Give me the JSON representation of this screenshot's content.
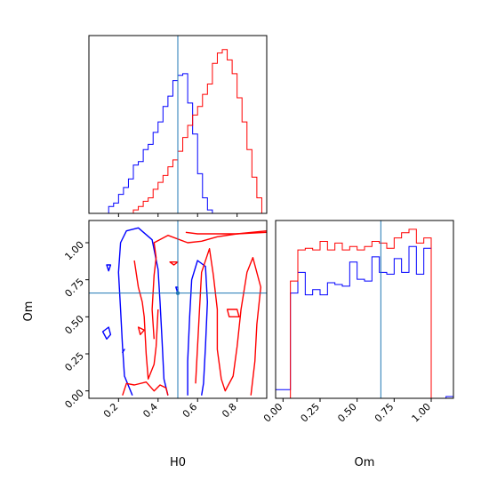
{
  "chart_data": {
    "type": "corner",
    "variables": [
      "H0",
      "Om"
    ],
    "colors": {
      "run_a": "#0000ff",
      "run_b": "#ff0000",
      "truth": "#1f77b4"
    },
    "truth": {
      "H0": 0.5,
      "Om": 0.66
    },
    "x_range_H0": [
      0.05,
      0.95
    ],
    "x_range_Om": [
      -0.05,
      1.15
    ],
    "y_range_Om": [
      -0.05,
      1.15
    ],
    "ticks_H0": [
      "0.2",
      "0.4",
      "0.6",
      "0.8"
    ],
    "ticks_Om_y": [
      "0.00",
      "0.25",
      "0.50",
      "0.75",
      "1.00"
    ],
    "ticks_Om_x": [
      "0.00",
      "0.25",
      "0.50",
      "0.75",
      "1.00"
    ],
    "xlabel_H0": "H0",
    "xlabel_Om": "Om",
    "ylabel_Om": "Om",
    "hist_H0": {
      "bin_edges": [
        0.05,
        0.075,
        0.1,
        0.125,
        0.15,
        0.175,
        0.2,
        0.225,
        0.25,
        0.275,
        0.3,
        0.325,
        0.35,
        0.375,
        0.4,
        0.425,
        0.45,
        0.475,
        0.5,
        0.525,
        0.55,
        0.575,
        0.6,
        0.625,
        0.65,
        0.675,
        0.7,
        0.725,
        0.75,
        0.775,
        0.8,
        0.825,
        0.85,
        0.875,
        0.9,
        0.925,
        0.95
      ],
      "run_a": [
        0,
        0,
        0,
        0,
        0.04,
        0.06,
        0.11,
        0.15,
        0.2,
        0.28,
        0.3,
        0.37,
        0.4,
        0.47,
        0.53,
        0.62,
        0.68,
        0.77,
        0.8,
        0.81,
        0.64,
        0.46,
        0.23,
        0.09,
        0.02,
        0,
        0,
        0,
        0,
        0,
        0,
        0,
        0,
        0,
        0,
        0
      ],
      "run_b": [
        0,
        0,
        0,
        0,
        0,
        0,
        0,
        0,
        0,
        0.02,
        0.04,
        0.07,
        0.09,
        0.14,
        0.18,
        0.22,
        0.27,
        0.31,
        0.36,
        0.44,
        0.51,
        0.57,
        0.62,
        0.69,
        0.75,
        0.87,
        0.93,
        0.95,
        0.89,
        0.81,
        0.67,
        0.53,
        0.37,
        0.21,
        0.09,
        0
      ]
    },
    "hist_Om": {
      "bin_edges": [
        -0.05,
        0.0,
        0.05,
        0.1,
        0.15,
        0.2,
        0.25,
        0.3,
        0.35,
        0.4,
        0.45,
        0.5,
        0.55,
        0.6,
        0.65,
        0.7,
        0.75,
        0.8,
        0.85,
        0.9,
        0.95,
        1.0,
        1.05,
        1.1,
        1.15
      ],
      "run_a": [
        0.05,
        0.05,
        0.61,
        0.73,
        0.6,
        0.63,
        0.6,
        0.67,
        0.66,
        0.65,
        0.79,
        0.69,
        0.68,
        0.82,
        0.73,
        0.72,
        0.81,
        0.73,
        0.88,
        0.72,
        0.87,
        0,
        0,
        0.01
      ],
      "run_b": [
        0,
        0,
        0.68,
        0.86,
        0.87,
        0.86,
        0.91,
        0.86,
        0.9,
        0.86,
        0.88,
        0.86,
        0.88,
        0.91,
        0.9,
        0.87,
        0.93,
        0.96,
        0.98,
        0.9,
        0.93,
        0,
        0,
        0
      ]
    },
    "contours": {
      "run_a": [
        [
          [
            0.27,
            -0.03
          ],
          [
            0.23,
            0.1
          ],
          [
            0.22,
            0.3
          ],
          [
            0.21,
            0.55
          ],
          [
            0.2,
            0.8
          ],
          [
            0.21,
            1.0
          ],
          [
            0.24,
            1.08
          ],
          [
            0.3,
            1.1
          ],
          [
            0.37,
            1.02
          ],
          [
            0.4,
            0.82
          ],
          [
            0.41,
            0.6
          ],
          [
            0.42,
            0.35
          ],
          [
            0.43,
            0.08
          ],
          [
            0.45,
            -0.03
          ]
        ],
        [
          [
            0.55,
            -0.03
          ],
          [
            0.55,
            0.2
          ],
          [
            0.56,
            0.5
          ],
          [
            0.57,
            0.75
          ],
          [
            0.6,
            0.88
          ],
          [
            0.64,
            0.84
          ],
          [
            0.65,
            0.6
          ],
          [
            0.64,
            0.3
          ],
          [
            0.63,
            0.05
          ],
          [
            0.62,
            -0.03
          ]
        ],
        [
          [
            0.14,
            0.35
          ],
          [
            0.12,
            0.4
          ],
          [
            0.15,
            0.43
          ],
          [
            0.16,
            0.38
          ]
        ],
        [
          [
            0.14,
            0.85
          ],
          [
            0.15,
            0.81
          ],
          [
            0.16,
            0.85
          ]
        ],
        [
          [
            0.23,
            0.28
          ],
          [
            0.22,
            0.26
          ]
        ],
        [
          [
            0.49,
            0.7
          ],
          [
            0.5,
            0.66
          ],
          [
            0.5,
            0.7
          ]
        ]
      ],
      "run_b": [
        [
          [
            0.22,
            -0.03
          ],
          [
            0.24,
            0.05
          ],
          [
            0.28,
            0.04
          ],
          [
            0.34,
            0.06
          ],
          [
            0.38,
            0.0
          ],
          [
            0.41,
            0.04
          ],
          [
            0.44,
            0.02
          ],
          [
            0.45,
            -0.03
          ]
        ],
        [
          [
            0.38,
            0.35
          ],
          [
            0.37,
            0.55
          ],
          [
            0.38,
            0.78
          ],
          [
            0.39,
            0.9
          ],
          [
            0.38,
            1.0
          ],
          [
            0.45,
            1.05
          ],
          [
            0.55,
            1.0
          ],
          [
            0.62,
            1.01
          ],
          [
            0.7,
            1.04
          ],
          [
            0.8,
            1.06
          ],
          [
            0.95,
            1.07
          ]
        ],
        [
          [
            0.28,
            0.88
          ],
          [
            0.3,
            0.7
          ],
          [
            0.32,
            0.6
          ],
          [
            0.33,
            0.5
          ],
          [
            0.34,
            0.25
          ],
          [
            0.35,
            0.08
          ],
          [
            0.38,
            0.18
          ],
          [
            0.39,
            0.3
          ],
          [
            0.4,
            0.55
          ]
        ],
        [
          [
            0.54,
            1.07
          ],
          [
            0.6,
            1.06
          ],
          [
            0.7,
            1.06
          ],
          [
            0.8,
            1.06
          ],
          [
            0.95,
            1.08
          ]
        ],
        [
          [
            0.59,
            0.05
          ],
          [
            0.6,
            0.3
          ],
          [
            0.61,
            0.55
          ],
          [
            0.62,
            0.8
          ],
          [
            0.66,
            0.96
          ],
          [
            0.68,
            0.78
          ],
          [
            0.7,
            0.55
          ],
          [
            0.7,
            0.28
          ],
          [
            0.72,
            0.08
          ],
          [
            0.74,
            0.0
          ],
          [
            0.78,
            0.1
          ],
          [
            0.8,
            0.3
          ],
          [
            0.82,
            0.55
          ],
          [
            0.85,
            0.8
          ],
          [
            0.88,
            0.9
          ],
          [
            0.92,
            0.7
          ],
          [
            0.9,
            0.45
          ],
          [
            0.89,
            0.2
          ],
          [
            0.87,
            -0.03
          ]
        ],
        [
          [
            0.75,
            0.55
          ],
          [
            0.8,
            0.55
          ],
          [
            0.81,
            0.5
          ],
          [
            0.76,
            0.5
          ]
        ],
        [
          [
            0.46,
            0.87
          ],
          [
            0.48,
            0.85
          ],
          [
            0.5,
            0.87
          ]
        ],
        [
          [
            0.3,
            0.43
          ],
          [
            0.33,
            0.41
          ],
          [
            0.31,
            0.38
          ]
        ]
      ]
    }
  }
}
